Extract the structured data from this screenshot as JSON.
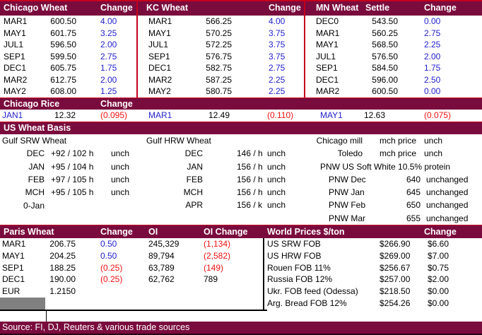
{
  "colors": {
    "header_bar": "#7A0B3D",
    "accent_line": "#C4001E",
    "positive_blue": "#2222CC",
    "negative_red": "#EE1111",
    "gray_box": "#808080"
  },
  "futures": {
    "panels": [
      {
        "title": "Chicago Wheat",
        "change_label": "Change",
        "rows": [
          {
            "month": "MAR1",
            "settle": "600.50",
            "change": "4.00"
          },
          {
            "month": "MAY1",
            "settle": "601.75",
            "change": "3.25"
          },
          {
            "month": "JUL1",
            "settle": "596.50",
            "change": "2.00"
          },
          {
            "month": "SEP1",
            "settle": "599.50",
            "change": "2.75"
          },
          {
            "month": "DEC1",
            "settle": "605.75",
            "change": "1.75"
          },
          {
            "month": "MAR2",
            "settle": "612.75",
            "change": "2.00"
          },
          {
            "month": "MAY2",
            "settle": "608.00",
            "change": "1.25"
          }
        ]
      },
      {
        "title": "KC Wheat",
        "change_label": "Change",
        "rows": [
          {
            "month": "MAR1",
            "settle": "566.25",
            "change": "4.00"
          },
          {
            "month": "MAY1",
            "settle": "570.25",
            "change": "3.75"
          },
          {
            "month": "JUL1",
            "settle": "572.25",
            "change": "3.75"
          },
          {
            "month": "SEP1",
            "settle": "576.75",
            "change": "3.75"
          },
          {
            "month": "DEC1",
            "settle": "582.75",
            "change": "2.75"
          },
          {
            "month": "MAR2",
            "settle": "587.25",
            "change": "2.25"
          },
          {
            "month": "MAY2",
            "settle": "580.75",
            "change": "2.25"
          }
        ]
      },
      {
        "title": "MN Wheat",
        "settle_label": "Settle",
        "change_label": "Change",
        "rows": [
          {
            "month": "DEC0",
            "settle": "543.50",
            "change": "0.00"
          },
          {
            "month": "MAR1",
            "settle": "560.25",
            "change": "2.75"
          },
          {
            "month": "MAY1",
            "settle": "568.50",
            "change": "2.25"
          },
          {
            "month": "JUL1",
            "settle": "576.50",
            "change": "2.00"
          },
          {
            "month": "SEP1",
            "settle": "584.50",
            "change": "1.75"
          },
          {
            "month": "DEC1",
            "settle": "596.00",
            "change": "2.50"
          },
          {
            "month": "MAR2",
            "settle": "600.50",
            "change": "0.00"
          }
        ]
      }
    ]
  },
  "rice": {
    "title": "Chicago Rice",
    "change_label": "Change",
    "entries": [
      {
        "month": "JAN1",
        "price": "12.32",
        "change": "(0.095)"
      },
      {
        "month": "MAR1",
        "price": "12.49",
        "change": "(0.110)"
      },
      {
        "month": "MAY1",
        "price": "12.63",
        "change": "(0.075)"
      }
    ]
  },
  "basis": {
    "title": "US Wheat Basis",
    "srw": {
      "title": "Gulf SRW Wheat",
      "rows": [
        {
          "label": "DEC",
          "value": "+92 / 102 h",
          "status": "unch"
        },
        {
          "label": "JAN",
          "value": "+95 / 104 h",
          "status": "unch"
        },
        {
          "label": "FEB",
          "value": "+97 / 105 h",
          "status": "unch"
        },
        {
          "label": "MCH",
          "value": "+95 / 105 h",
          "status": "unch"
        }
      ],
      "footer": "0-Jan"
    },
    "hrw": {
      "title": "Gulf HRW Wheat",
      "rows": [
        {
          "label": "DEC",
          "value": "146 / h",
          "status": "unch"
        },
        {
          "label": "JAN",
          "value": "156 / h",
          "status": "unch"
        },
        {
          "label": "FEB",
          "value": "156 / h",
          "status": "unch"
        },
        {
          "label": "MCH",
          "value": "156 / h",
          "status": "unch"
        },
        {
          "label": "APR",
          "value": "156 / k",
          "status": "unch"
        }
      ]
    },
    "domestic": {
      "rows": [
        {
          "label": "Chicago mill",
          "value": "mch price",
          "status": "unch"
        },
        {
          "label": "Toledo",
          "value": "mch price",
          "status": "unch"
        }
      ]
    },
    "pnw": {
      "title": "PNW US Soft White 10.5% protein",
      "rows": [
        {
          "label": "PNW Dec",
          "value": "640",
          "status": "unchanged"
        },
        {
          "label": "PNW Jan",
          "value": "645",
          "status": "unchanged"
        },
        {
          "label": "PNW Feb",
          "value": "650",
          "status": "unchanged"
        },
        {
          "label": "PNW Mar",
          "value": "655",
          "status": "unchanged"
        }
      ]
    }
  },
  "paris": {
    "title": "Paris Wheat",
    "change_label": "Change",
    "oi_label": "OI",
    "oi_change_label": "OI Change",
    "rows": [
      {
        "month": "MAR1",
        "price": "206.75",
        "change": "0.50",
        "change_color": "blue",
        "oi": "245,329",
        "oi_change": "(1,134)",
        "oi_change_color": "red"
      },
      {
        "month": "MAY1",
        "price": "204.25",
        "change": "0.50",
        "change_color": "blue",
        "oi": "89,794",
        "oi_change": "(2,582)",
        "oi_change_color": "red"
      },
      {
        "month": "SEP1",
        "price": "188.25",
        "change": "(0.25)",
        "change_color": "red",
        "oi": "63,789",
        "oi_change": "(149)",
        "oi_change_color": "red"
      },
      {
        "month": "DEC1",
        "price": "190.00",
        "change": "(0.25)",
        "change_color": "red",
        "oi": "62,762",
        "oi_change": "789",
        "oi_change_color": "black"
      }
    ],
    "eur": {
      "label": "EUR",
      "value": "1.2150"
    }
  },
  "world": {
    "title": "World Prices $/ton",
    "change_label": "Change",
    "rows": [
      {
        "label": "US SRW FOB",
        "price": "$266.90",
        "change": "$6.60"
      },
      {
        "label": "US HRW FOB",
        "price": "$269.00",
        "change": "$7.00"
      },
      {
        "label": "Rouen FOB 11%",
        "price": "$256.67",
        "change": "$0.75"
      },
      {
        "label": "Russia FOB 12%",
        "price": "$257.00",
        "change": "$2.00"
      },
      {
        "label": "Ukr. FOB feed (Odessa)",
        "price": "$218.50",
        "change": "$0.00"
      },
      {
        "label": "Arg. Bread FOB 12%",
        "price": "$254.26",
        "change": "$0.00"
      }
    ]
  },
  "footer": {
    "source": "Source: FI, DJ, Reuters & various trade sources"
  }
}
